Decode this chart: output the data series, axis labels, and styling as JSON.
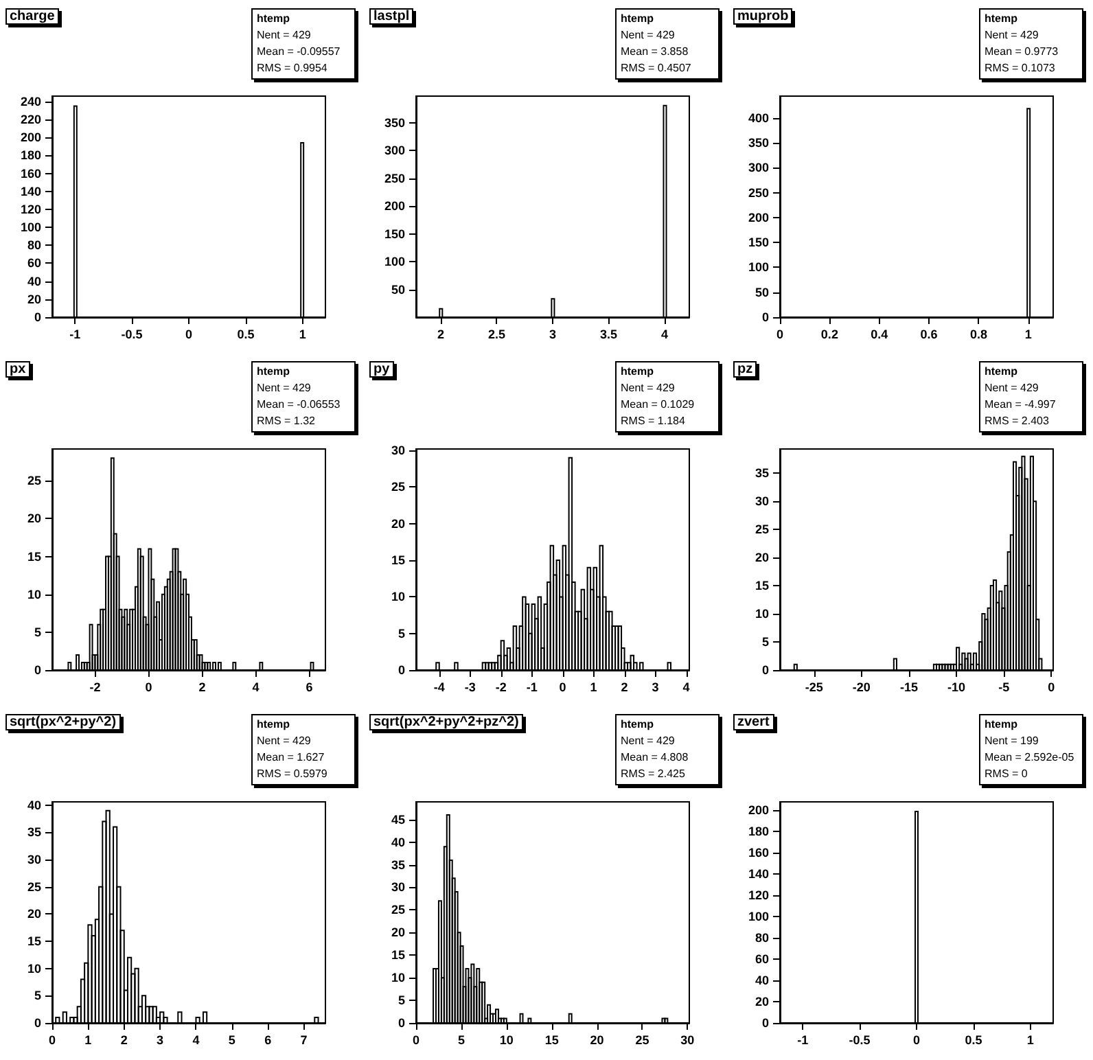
{
  "chart_data": [
    {
      "type": "histogram",
      "title": "charge",
      "color": "#000000",
      "annotations": [
        "htemp",
        "Nent = 429",
        "Mean = -0.09557",
        "RMS = 0.9954"
      ],
      "bins": [
        -1.2,
        -1.008,
        -0.984,
        0.984,
        1.008,
        1.2
      ],
      "values": [
        0,
        235,
        0,
        194,
        0
      ],
      "xlim": [
        -1.2,
        1.2
      ],
      "xticks": [
        -1,
        -0.5,
        0,
        0.5,
        1
      ],
      "ylim": [
        0,
        246
      ],
      "yticks": [
        0,
        20,
        40,
        60,
        80,
        100,
        120,
        140,
        160,
        180,
        200,
        220,
        240
      ]
    },
    {
      "type": "histogram",
      "title": "lastpl",
      "color": "#000000",
      "annotations": [
        "htemp",
        "Nent = 429",
        "Mean = 3.858",
        "RMS = 0.4507"
      ],
      "bins": [
        1.78,
        1.99,
        2.015,
        2.99,
        3.015,
        3.99,
        4.015,
        4.22
      ],
      "values": [
        0,
        15,
        0,
        33,
        0,
        381,
        0
      ],
      "xlim": [
        1.78,
        4.22
      ],
      "xticks": [
        2,
        2.5,
        3,
        3.5,
        4
      ],
      "ylim": [
        0,
        398
      ],
      "yticks": [
        50,
        100,
        150,
        200,
        250,
        300,
        350
      ]
    },
    {
      "type": "histogram",
      "title": "muprob",
      "color": "#000000",
      "annotations": [
        "htemp",
        "Nent = 429",
        "Mean = 0.9773",
        "RMS = 0.1073"
      ],
      "bins": [
        0,
        0.9955,
        1.0065,
        1.1
      ],
      "values": [
        0,
        419,
        0
      ],
      "xlim": [
        0,
        1.1
      ],
      "xticks": [
        0,
        0.2,
        0.4,
        0.6,
        0.8,
        1
      ],
      "ylim": [
        0,
        444
      ],
      "yticks": [
        0,
        50,
        100,
        150,
        200,
        250,
        300,
        350,
        400
      ]
    },
    {
      "type": "histogram",
      "title": "px",
      "color": "#000000",
      "annotations": [
        "htemp",
        "Nent = 429",
        "Mean = -0.06553",
        "RMS = 1.32"
      ],
      "bins": [
        -3.6,
        -3.1,
        -3.0,
        -2.9,
        -2.8,
        -2.7,
        -2.6,
        -2.5,
        -2.4,
        -2.3,
        -2.2,
        -2.1,
        -2.0,
        -1.9,
        -1.8,
        -1.7,
        -1.6,
        -1.5,
        -1.4,
        -1.3,
        -1.2,
        -1.1,
        -1.0,
        -0.9,
        -0.8,
        -0.7,
        -0.6,
        -0.5,
        -0.4,
        -0.3,
        -0.2,
        -0.1,
        0,
        0.1,
        0.2,
        0.3,
        0.4,
        0.5,
        0.6,
        0.7,
        0.8,
        0.9,
        1.0,
        1.1,
        1.2,
        1.3,
        1.4,
        1.5,
        1.6,
        1.7,
        1.8,
        1.9,
        2.0,
        2.1,
        2.2,
        2.3,
        2.4,
        2.5,
        2.6,
        2.7,
        3.15,
        3.25,
        4.15,
        4.25,
        6.05,
        6.15,
        6.6
      ],
      "values": [
        0,
        0,
        1,
        0,
        0,
        2,
        0,
        1,
        1,
        1,
        6,
        2,
        2,
        6,
        8,
        8,
        15,
        15,
        28,
        18,
        15,
        8,
        7,
        8,
        6,
        8,
        8,
        11,
        16,
        15,
        7,
        6,
        16,
        12,
        7,
        9,
        4,
        10,
        11,
        12,
        13,
        16,
        16,
        13,
        10,
        12,
        10,
        7,
        4,
        4,
        2,
        2,
        1,
        1,
        1,
        0,
        1,
        0,
        1,
        0,
        1,
        0,
        1,
        0,
        1,
        0
      ],
      "xlim": [
        -3.6,
        6.6
      ],
      "xticks": [
        -2,
        0,
        2,
        4,
        6
      ],
      "ylim": [
        0,
        29.2
      ],
      "yticks": [
        0,
        5,
        10,
        15,
        20,
        25
      ]
    },
    {
      "type": "histogram",
      "title": "py",
      "color": "#000000",
      "annotations": [
        "htemp",
        "Nent = 429",
        "Mean = 0.1029",
        "RMS = 1.184"
      ],
      "bins": [
        -4.75,
        -4.1,
        -4.0,
        -3.5,
        -3.4,
        -2.6,
        -2.5,
        -2.4,
        -2.3,
        -2.2,
        -2.1,
        -2.0,
        -1.9,
        -1.8,
        -1.7,
        -1.6,
        -1.5,
        -1.4,
        -1.3,
        -1.2,
        -1.1,
        -1.0,
        -0.9,
        -0.8,
        -0.7,
        -0.6,
        -0.5,
        -0.4,
        -0.3,
        -0.2,
        -0.1,
        0,
        0.1,
        0.2,
        0.3,
        0.4,
        0.5,
        0.6,
        0.7,
        0.8,
        0.9,
        1.0,
        1.1,
        1.2,
        1.3,
        1.4,
        1.5,
        1.6,
        1.7,
        1.8,
        1.9,
        2.0,
        2.1,
        2.2,
        2.3,
        2.4,
        2.5,
        2.6,
        2.7,
        3.4,
        3.5,
        4.1
      ],
      "values": [
        0,
        1,
        0,
        1,
        0,
        1,
        1,
        1,
        1,
        1,
        2,
        4,
        2,
        3,
        1,
        6,
        3,
        6,
        10,
        9,
        5,
        9,
        7,
        10,
        3,
        9,
        12,
        17,
        13,
        15,
        10,
        17,
        13,
        29,
        12,
        8,
        8,
        11,
        7,
        14,
        11,
        14,
        10,
        17,
        10,
        8,
        8,
        6,
        6,
        6,
        3,
        1,
        1,
        2,
        1,
        0,
        1,
        0,
        0,
        1,
        0
      ],
      "xlim": [
        -4.75,
        4.1
      ],
      "xticks": [
        -4,
        -3,
        -2,
        -1,
        0,
        1,
        2,
        3,
        4
      ],
      "ylim": [
        0,
        30.2
      ],
      "yticks": [
        0,
        5,
        10,
        15,
        20,
        25,
        30
      ]
    },
    {
      "type": "histogram",
      "title": "pz",
      "color": "#000000",
      "annotations": [
        "htemp",
        "Nent = 429",
        "Mean = -4.997",
        "RMS = 2.403"
      ],
      "bins": [
        -28.6,
        -27.1,
        -26.8,
        -16.6,
        -16.3,
        -12.4,
        -12.1,
        -11.8,
        -11.5,
        -11.2,
        -10.9,
        -10.6,
        -10.3,
        -10.0,
        -9.7,
        -9.4,
        -9.1,
        -8.8,
        -8.5,
        -8.2,
        -7.9,
        -7.6,
        -7.3,
        -7.0,
        -6.7,
        -6.4,
        -6.1,
        -5.8,
        -5.5,
        -5.2,
        -4.9,
        -4.6,
        -4.3,
        -4.0,
        -3.7,
        -3.4,
        -3.1,
        -2.8,
        -2.5,
        -2.2,
        -1.9,
        -1.6,
        -1.3,
        -1.0,
        0.2
      ],
      "values": [
        0,
        1,
        0,
        2,
        0,
        1,
        1,
        1,
        1,
        1,
        1,
        1,
        1,
        4,
        1,
        3,
        2,
        3,
        1,
        3,
        1,
        5,
        10,
        9,
        11,
        15,
        16,
        12,
        14,
        11,
        15,
        21,
        24,
        37,
        31,
        36,
        38,
        34,
        15,
        38,
        30,
        9,
        2,
        0
      ],
      "xlim": [
        -28.6,
        0.2
      ],
      "xticks": [
        -25,
        -20,
        -15,
        -10,
        -5,
        0
      ],
      "ylim": [
        0,
        39.3
      ],
      "yticks": [
        0,
        5,
        10,
        15,
        20,
        25,
        30,
        35
      ]
    },
    {
      "type": "histogram",
      "title": "sqrt(px^2+py^2)",
      "color": "#000000",
      "annotations": [
        "htemp",
        "Nent = 429",
        "Mean = 1.627",
        "RMS = 0.5979"
      ],
      "bins": [
        0,
        0.1,
        0.2,
        0.3,
        0.4,
        0.5,
        0.6,
        0.7,
        0.8,
        0.9,
        1.0,
        1.1,
        1.2,
        1.3,
        1.4,
        1.5,
        1.6,
        1.7,
        1.8,
        1.9,
        2.0,
        2.1,
        2.2,
        2.3,
        2.4,
        2.5,
        2.6,
        2.7,
        2.8,
        2.9,
        3.0,
        3.1,
        3.2,
        3.5,
        3.6,
        4.0,
        4.1,
        4.2,
        4.3,
        7.3,
        7.4,
        7.6
      ],
      "values": [
        0,
        1,
        0,
        2,
        0,
        1,
        1,
        3,
        8,
        11,
        18,
        16,
        19,
        25,
        37,
        39,
        20,
        36,
        25,
        17,
        6,
        12,
        9,
        10,
        3,
        5,
        3,
        3,
        3,
        1,
        2,
        1,
        0,
        2,
        0,
        1,
        0,
        2,
        0,
        1,
        0
      ],
      "xlim": [
        0,
        7.6
      ],
      "xticks": [
        0,
        1,
        2,
        3,
        4,
        5,
        6,
        7
      ],
      "ylim": [
        0,
        40.6
      ],
      "yticks": [
        0,
        5,
        10,
        15,
        20,
        25,
        30,
        35,
        40
      ]
    },
    {
      "type": "histogram",
      "title": "sqrt(px^2+py^2+pz^2)",
      "color": "#000000",
      "annotations": [
        "htemp",
        "Nent = 429",
        "Mean = 4.808",
        "RMS = 2.425"
      ],
      "bins": [
        0,
        1.9,
        2.2,
        2.5,
        2.8,
        3.1,
        3.4,
        3.7,
        4.0,
        4.3,
        4.6,
        4.9,
        5.2,
        5.5,
        5.8,
        6.1,
        6.4,
        6.7,
        7.0,
        7.3,
        7.6,
        7.9,
        8.2,
        8.5,
        8.8,
        9.1,
        9.4,
        9.7,
        10.0,
        11.5,
        11.8,
        12.4,
        12.7,
        16.9,
        17.2,
        27.2,
        27.5,
        27.8,
        30.2
      ],
      "values": [
        0,
        12,
        12,
        27,
        10,
        39,
        46,
        36,
        32,
        29,
        20,
        17,
        8,
        12,
        10,
        13,
        8,
        12,
        9,
        9,
        1,
        4,
        2,
        2,
        3,
        1,
        1,
        1,
        0,
        2,
        0,
        1,
        0,
        2,
        0,
        1,
        1,
        0
      ],
      "xlim": [
        0,
        30.2
      ],
      "xticks": [
        0,
        5,
        10,
        15,
        20,
        25,
        30
      ],
      "ylim": [
        0,
        48.9
      ],
      "yticks": [
        0,
        5,
        10,
        15,
        20,
        25,
        30,
        35,
        40,
        45
      ]
    },
    {
      "type": "histogram",
      "title": "zvert",
      "color": "#000000",
      "annotations": [
        "htemp",
        "Nent = 199",
        "Mean = 2.592e-05",
        "RMS = 0"
      ],
      "bins": [
        -1.2,
        -0.012,
        0.012,
        1.2
      ],
      "values": [
        0,
        199,
        0
      ],
      "xlim": [
        -1.2,
        1.2
      ],
      "xticks": [
        -1,
        -0.5,
        0,
        0.5,
        1
      ],
      "ylim": [
        0,
        208
      ],
      "yticks": [
        0,
        20,
        40,
        60,
        80,
        100,
        120,
        140,
        160,
        180,
        200
      ]
    }
  ]
}
